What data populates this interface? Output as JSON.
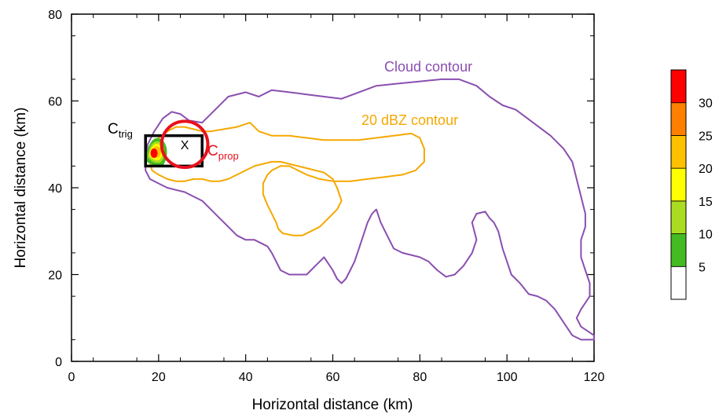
{
  "chart_data": {
    "type": "contour",
    "xlabel": "Horizontal distance (km)",
    "ylabel": "Horizontal distance (km)",
    "xlim": [
      0,
      120
    ],
    "ylim": [
      0,
      80
    ],
    "x_ticks": [
      0,
      20,
      40,
      60,
      80,
      100,
      120
    ],
    "y_ticks": [
      0,
      20,
      40,
      60,
      80
    ],
    "x_tick_labels": [
      "0",
      "20",
      "40",
      "60",
      "80",
      "100",
      "120"
    ],
    "y_tick_labels": [
      "0",
      "20",
      "40",
      "60",
      "80"
    ],
    "grid": false,
    "annotations": {
      "cloud_label": "Cloud contour",
      "dbz_label": "20 dBZ contour",
      "trig_base": "C",
      "trig_sub": "trig",
      "prop_base": "C",
      "prop_sub": "prop",
      "center_mark": "X"
    },
    "colorbar": {
      "labels": [
        "5",
        "10",
        "15",
        "20",
        "25",
        "30"
      ],
      "colors": [
        "#ffffff",
        "#44bb22",
        "#aadd22",
        "#ffff00",
        "#ffc000",
        "#ff8000",
        "#ff0000"
      ]
    },
    "colors": {
      "cloud": "#8a4fb0",
      "dbz20": "#f5a800",
      "prop_circle": "#e8101c",
      "trig_box": "#000000"
    },
    "series": [
      {
        "name": "Cloud contour",
        "points": [
          [
            17,
            46
          ],
          [
            17.5,
            50
          ],
          [
            19,
            53
          ],
          [
            21,
            56
          ],
          [
            23,
            57.5
          ],
          [
            25,
            57
          ],
          [
            27,
            55.5
          ],
          [
            30,
            55
          ],
          [
            33,
            58
          ],
          [
            36,
            61
          ],
          [
            40,
            62
          ],
          [
            43,
            61
          ],
          [
            46,
            62.5
          ],
          [
            50,
            62
          ],
          [
            54,
            61.5
          ],
          [
            58,
            61
          ],
          [
            62,
            60.5
          ],
          [
            66,
            62
          ],
          [
            70,
            63.5
          ],
          [
            75,
            64
          ],
          [
            80,
            64.5
          ],
          [
            85,
            65
          ],
          [
            89,
            65
          ],
          [
            93,
            63.5
          ],
          [
            96,
            61
          ],
          [
            99,
            59
          ],
          [
            102,
            58
          ],
          [
            106,
            55
          ],
          [
            110,
            52
          ],
          [
            113,
            49
          ],
          [
            115,
            46
          ],
          [
            116,
            42
          ],
          [
            117,
            38
          ],
          [
            118,
            34
          ],
          [
            118,
            31
          ],
          [
            117,
            28
          ],
          [
            117,
            24
          ],
          [
            118,
            21
          ],
          [
            119,
            18
          ],
          [
            119,
            15
          ],
          [
            117,
            12
          ],
          [
            116,
            10
          ],
          [
            117,
            8
          ],
          [
            120,
            6
          ],
          [
            120,
            5
          ],
          [
            117,
            5
          ],
          [
            115,
            6
          ],
          [
            113,
            9
          ],
          [
            111,
            12
          ],
          [
            109,
            14
          ],
          [
            107,
            15
          ],
          [
            105,
            15.5
          ],
          [
            103,
            18
          ],
          [
            101,
            20
          ],
          [
            100,
            23
          ],
          [
            99,
            26
          ],
          [
            98,
            30
          ],
          [
            97,
            32
          ],
          [
            96,
            33
          ],
          [
            95,
            34.5
          ],
          [
            93,
            34
          ],
          [
            92,
            32
          ],
          [
            93,
            28
          ],
          [
            92,
            25
          ],
          [
            90,
            22
          ],
          [
            88,
            20
          ],
          [
            86,
            19.5
          ],
          [
            84,
            21
          ],
          [
            82,
            23
          ],
          [
            80,
            24
          ],
          [
            78,
            24.5
          ],
          [
            76,
            25
          ],
          [
            74,
            26
          ],
          [
            73,
            28
          ],
          [
            72,
            30
          ],
          [
            71,
            32
          ],
          [
            70,
            35
          ],
          [
            69,
            34
          ],
          [
            68,
            32
          ],
          [
            67,
            29
          ],
          [
            66,
            26
          ],
          [
            65,
            23
          ],
          [
            64,
            21
          ],
          [
            63,
            19
          ],
          [
            62,
            18
          ],
          [
            61,
            19
          ],
          [
            60,
            21
          ],
          [
            58,
            24
          ],
          [
            56,
            22
          ],
          [
            54,
            20
          ],
          [
            52,
            20
          ],
          [
            50,
            20
          ],
          [
            48,
            21
          ],
          [
            47,
            23
          ],
          [
            46,
            25
          ],
          [
            45,
            26.5
          ],
          [
            44,
            27
          ],
          [
            42,
            28
          ],
          [
            40,
            28
          ],
          [
            38,
            29
          ],
          [
            36,
            31
          ],
          [
            34,
            33
          ],
          [
            32,
            35
          ],
          [
            30,
            37
          ],
          [
            28,
            38
          ],
          [
            26,
            39
          ],
          [
            24,
            39.5
          ],
          [
            22,
            40
          ],
          [
            20,
            41
          ],
          [
            18,
            42
          ],
          [
            17,
            44
          ],
          [
            17,
            46
          ]
        ]
      },
      {
        "name": "20 dBZ contour",
        "points": [
          [
            18,
            46
          ],
          [
            18.5,
            49
          ],
          [
            20,
            51.5
          ],
          [
            22,
            53
          ],
          [
            24,
            54
          ],
          [
            26,
            54
          ],
          [
            28,
            53.5
          ],
          [
            30,
            53
          ],
          [
            32,
            53
          ],
          [
            35,
            53.5
          ],
          [
            38,
            54
          ],
          [
            41,
            55
          ],
          [
            43,
            53
          ],
          [
            46,
            52
          ],
          [
            50,
            52
          ],
          [
            54,
            51.5
          ],
          [
            58,
            51
          ],
          [
            62,
            51
          ],
          [
            66,
            51
          ],
          [
            70,
            51.5
          ],
          [
            74,
            52
          ],
          [
            78,
            52.5
          ],
          [
            80,
            51.5
          ],
          [
            81,
            49
          ],
          [
            81,
            46
          ],
          [
            79,
            44
          ],
          [
            76,
            43
          ],
          [
            72,
            42.5
          ],
          [
            68,
            42
          ],
          [
            64,
            41.5
          ],
          [
            60,
            41.5
          ],
          [
            57,
            42
          ],
          [
            54,
            43
          ],
          [
            52,
            44
          ],
          [
            50,
            45
          ],
          [
            48,
            45
          ],
          [
            46,
            44
          ],
          [
            45,
            43
          ],
          [
            44,
            41
          ],
          [
            44,
            38.5
          ],
          [
            45,
            36
          ],
          [
            46,
            34
          ],
          [
            47,
            32
          ],
          [
            47.5,
            30.5
          ],
          [
            48.5,
            29.5
          ],
          [
            51,
            29
          ],
          [
            53,
            29
          ],
          [
            55,
            30
          ],
          [
            57,
            31
          ],
          [
            59,
            33
          ],
          [
            61,
            35
          ],
          [
            62,
            37
          ],
          [
            61,
            40
          ],
          [
            60,
            42
          ],
          [
            58,
            43.5
          ],
          [
            56,
            44
          ],
          [
            54,
            44.5
          ],
          [
            52,
            45
          ],
          [
            50,
            45.5
          ],
          [
            48,
            46
          ],
          [
            46,
            46
          ],
          [
            44,
            45.5
          ],
          [
            42,
            45
          ],
          [
            40,
            44
          ],
          [
            38,
            43
          ],
          [
            36,
            42
          ],
          [
            34,
            41.5
          ],
          [
            32,
            41.5
          ],
          [
            30,
            42
          ],
          [
            28,
            42
          ],
          [
            26,
            41.5
          ],
          [
            24,
            41.5
          ],
          [
            22,
            42
          ],
          [
            20,
            43
          ],
          [
            18.5,
            44
          ],
          [
            18,
            46
          ]
        ]
      }
    ]
  }
}
